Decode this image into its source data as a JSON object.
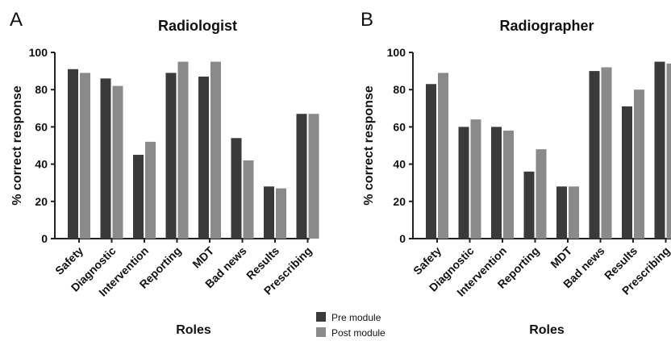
{
  "chart_data": [
    {
      "panel": "A",
      "type": "bar",
      "title": "Radiologist",
      "xlabel": "Roles",
      "ylabel": "% correct response",
      "ylim": [
        0,
        100
      ],
      "yticks": [
        "0",
        "20",
        "40",
        "60",
        "80",
        "100"
      ],
      "categories": [
        "Safety",
        "Diagnostic",
        "Intervention",
        "Reporting",
        "MDT",
        "Bad news",
        "Results",
        "Prescribing"
      ],
      "series": [
        {
          "name": "Pre module",
          "color": "#3a3a3a",
          "values": [
            91,
            86,
            45,
            89,
            87,
            54,
            28,
            67
          ]
        },
        {
          "name": "Post module",
          "color": "#8a8a8a",
          "values": [
            89,
            82,
            52,
            95,
            95,
            42,
            27,
            67
          ]
        }
      ],
      "grid": false
    },
    {
      "panel": "B",
      "type": "bar",
      "title": "Radiographer",
      "xlabel": "Roles",
      "ylabel": "% correct response",
      "ylim": [
        0,
        100
      ],
      "yticks": [
        "0",
        "20",
        "40",
        "60",
        "80",
        "100"
      ],
      "categories": [
        "Safety",
        "Diagnostic",
        "Intervention",
        "Reporting",
        "MDT",
        "Bad news",
        "Results",
        "Prescribing"
      ],
      "series": [
        {
          "name": "Pre module",
          "color": "#3a3a3a",
          "values": [
            83,
            60,
            60,
            36,
            28,
            90,
            71,
            95
          ]
        },
        {
          "name": "Post module",
          "color": "#8a8a8a",
          "values": [
            89,
            64,
            58,
            48,
            28,
            92,
            80,
            94
          ]
        }
      ],
      "grid": false
    }
  ],
  "legend": {
    "placement": "bottom-center",
    "items": [
      {
        "label": "Pre module",
        "color": "#3a3a3a"
      },
      {
        "label": "Post module",
        "color": "#8a8a8a"
      }
    ]
  }
}
